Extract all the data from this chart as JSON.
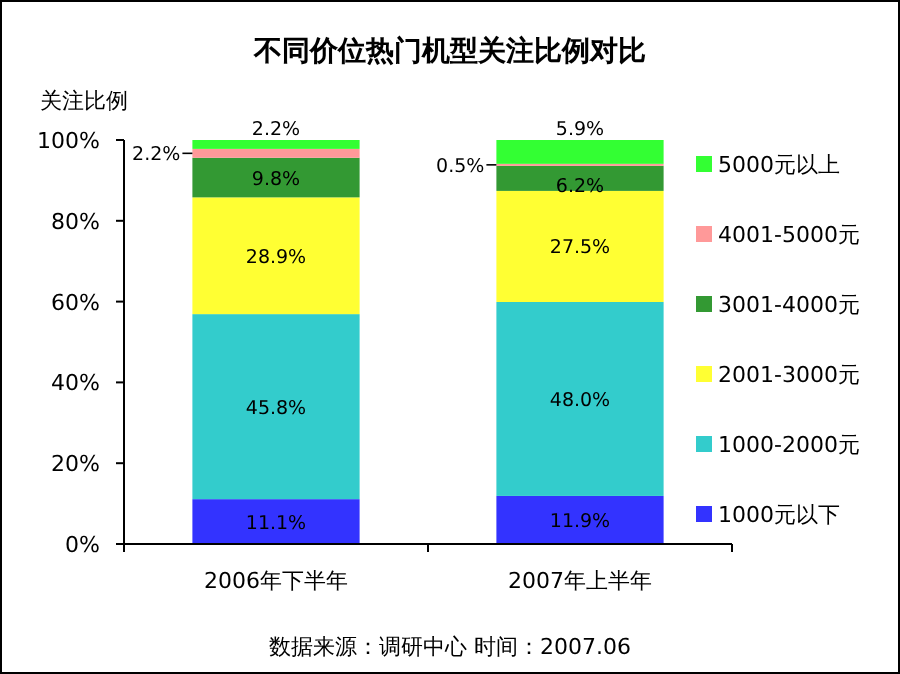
{
  "chart_data": {
    "type": "bar",
    "stacked": true,
    "title": "不同价位热门机型关注比例对比",
    "ylabel": "关注比例",
    "categories": [
      "2006年下半年",
      "2007年上半年"
    ],
    "series": [
      {
        "name": "1000元以下",
        "color": "#3333ff",
        "values": [
          11.1,
          11.9
        ],
        "value_labels": [
          "11.1%",
          "11.9%"
        ]
      },
      {
        "name": "1000-2000元",
        "color": "#33cccc",
        "values": [
          45.8,
          48.0
        ],
        "value_labels": [
          "45.8%",
          "48.0%"
        ]
      },
      {
        "name": "2001-3000元",
        "color": "#ffff33",
        "values": [
          28.9,
          27.5
        ],
        "value_labels": [
          "28.9%",
          "27.5%"
        ]
      },
      {
        "name": "3001-4000元",
        "color": "#339933",
        "values": [
          9.8,
          6.2
        ],
        "value_labels": [
          "9.8%",
          "6.2%"
        ]
      },
      {
        "name": "4001-5000元",
        "color": "#ff9999",
        "values": [
          2.2,
          0.5
        ],
        "value_labels": [
          "2.2%",
          "0.5%"
        ]
      },
      {
        "name": "5000元以上",
        "color": "#33ff33",
        "values": [
          2.2,
          5.9
        ],
        "value_labels": [
          "2.2%",
          "5.9%"
        ]
      }
    ],
    "ylim": [
      0,
      100
    ],
    "yticks": [
      {
        "value": 0,
        "label": "0%"
      },
      {
        "value": 20,
        "label": "20%"
      },
      {
        "value": 40,
        "label": "40%"
      },
      {
        "value": 60,
        "label": "60%"
      },
      {
        "value": 80,
        "label": "80%"
      },
      {
        "value": 100,
        "label": "100%"
      }
    ],
    "legend": "right",
    "annotations": [
      "数据来源：调研中心      时间：2007.06"
    ]
  }
}
